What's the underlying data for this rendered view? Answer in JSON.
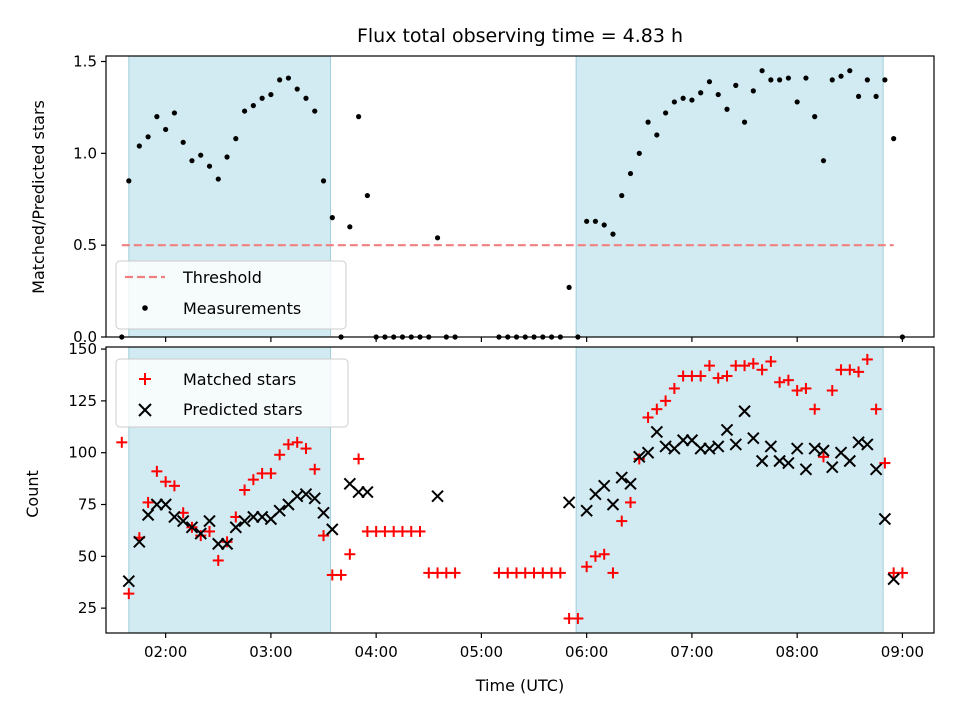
{
  "chart_data": [
    {
      "type": "scatter",
      "title": "Flux total observing time = 4.83 h",
      "xlabel": "",
      "ylabel": "Matched/Predicted stars",
      "ylim": [
        0,
        1.53
      ],
      "yticks": [
        0.0,
        0.5,
        1.0,
        1.5
      ],
      "ytick_labels": [
        "0.0",
        "0.5",
        "1.0",
        "1.5"
      ],
      "xlim": [
        "01:26",
        "09:18"
      ],
      "xticks": [
        "02:00",
        "03:00",
        "04:00",
        "05:00",
        "06:00",
        "07:00",
        "08:00",
        "09:00"
      ],
      "shaded_intervals": [
        [
          "01:39",
          "03:34"
        ],
        [
          "05:54",
          "08:49"
        ]
      ],
      "legend_position": "lower-left",
      "threshold": {
        "name": "Threshold",
        "value": 0.5,
        "x_range": [
          "01:35",
          "08:55"
        ],
        "color": "#f08080"
      },
      "series": [
        {
          "name": "Measurements",
          "marker": "dot",
          "color": "#000000",
          "points": [
            [
              "01:35",
              0.0
            ],
            [
              "01:39",
              0.85
            ],
            [
              "01:45",
              1.04
            ],
            [
              "01:50",
              1.09
            ],
            [
              "01:55",
              1.2
            ],
            [
              "02:00",
              1.13
            ],
            [
              "02:05",
              1.22
            ],
            [
              "02:10",
              1.06
            ],
            [
              "02:15",
              0.96
            ],
            [
              "02:20",
              0.99
            ],
            [
              "02:25",
              0.93
            ],
            [
              "02:30",
              0.86
            ],
            [
              "02:35",
              0.98
            ],
            [
              "02:40",
              1.08
            ],
            [
              "02:45",
              1.23
            ],
            [
              "02:50",
              1.26
            ],
            [
              "02:55",
              1.3
            ],
            [
              "03:00",
              1.32
            ],
            [
              "03:05",
              1.4
            ],
            [
              "03:10",
              1.41
            ],
            [
              "03:15",
              1.35
            ],
            [
              "03:20",
              1.3
            ],
            [
              "03:25",
              1.23
            ],
            [
              "03:30",
              0.85
            ],
            [
              "03:35",
              0.65
            ],
            [
              "03:40",
              0.0
            ],
            [
              "03:45",
              0.6
            ],
            [
              "03:50",
              1.2
            ],
            [
              "03:55",
              0.77
            ],
            [
              "04:00",
              0.0
            ],
            [
              "04:05",
              0.0
            ],
            [
              "04:10",
              0.0
            ],
            [
              "04:15",
              0.0
            ],
            [
              "04:20",
              0.0
            ],
            [
              "04:25",
              0.0
            ],
            [
              "04:30",
              0.0
            ],
            [
              "04:35",
              0.54
            ],
            [
              "04:40",
              0.0
            ],
            [
              "04:45",
              0.0
            ],
            [
              "05:10",
              0.0
            ],
            [
              "05:15",
              0.0
            ],
            [
              "05:20",
              0.0
            ],
            [
              "05:25",
              0.0
            ],
            [
              "05:30",
              0.0
            ],
            [
              "05:35",
              0.0
            ],
            [
              "05:40",
              0.0
            ],
            [
              "05:45",
              0.0
            ],
            [
              "05:50",
              0.27
            ],
            [
              "05:55",
              0.0
            ],
            [
              "06:00",
              0.63
            ],
            [
              "06:05",
              0.63
            ],
            [
              "06:10",
              0.61
            ],
            [
              "06:15",
              0.56
            ],
            [
              "06:20",
              0.77
            ],
            [
              "06:25",
              0.89
            ],
            [
              "06:30",
              1.0
            ],
            [
              "06:35",
              1.17
            ],
            [
              "06:40",
              1.1
            ],
            [
              "06:45",
              1.22
            ],
            [
              "06:50",
              1.28
            ],
            [
              "06:55",
              1.3
            ],
            [
              "07:00",
              1.29
            ],
            [
              "07:05",
              1.33
            ],
            [
              "07:10",
              1.39
            ],
            [
              "07:15",
              1.32
            ],
            [
              "07:20",
              1.24
            ],
            [
              "07:25",
              1.37
            ],
            [
              "07:30",
              1.17
            ],
            [
              "07:35",
              1.34
            ],
            [
              "07:40",
              1.45
            ],
            [
              "07:45",
              1.4
            ],
            [
              "07:50",
              1.4
            ],
            [
              "07:55",
              1.41
            ],
            [
              "08:00",
              1.28
            ],
            [
              "08:05",
              1.41
            ],
            [
              "08:10",
              1.2
            ],
            [
              "08:15",
              0.96
            ],
            [
              "08:20",
              1.4
            ],
            [
              "08:25",
              1.42
            ],
            [
              "08:30",
              1.45
            ],
            [
              "08:35",
              1.31
            ],
            [
              "08:40",
              1.4
            ],
            [
              "08:45",
              1.31
            ],
            [
              "08:50",
              1.4
            ],
            [
              "08:55",
              1.08
            ],
            [
              "09:00",
              0.0
            ]
          ]
        }
      ]
    },
    {
      "type": "scatter",
      "title": "",
      "xlabel": "Time (UTC)",
      "ylabel": "Count",
      "ylim": [
        13,
        151
      ],
      "yticks": [
        25,
        50,
        75,
        100,
        125,
        150
      ],
      "ytick_labels": [
        "25",
        "50",
        "75",
        "100",
        "125",
        "150"
      ],
      "xlim": [
        "01:26",
        "09:18"
      ],
      "xticks": [
        "02:00",
        "03:00",
        "04:00",
        "05:00",
        "06:00",
        "07:00",
        "08:00",
        "09:00"
      ],
      "xtick_labels": [
        "02:00",
        "03:00",
        "04:00",
        "05:00",
        "06:00",
        "07:00",
        "08:00",
        "09:00"
      ],
      "shaded_intervals": [
        [
          "01:39",
          "03:34"
        ],
        [
          "05:54",
          "08:49"
        ]
      ],
      "legend_position": "upper-left",
      "series": [
        {
          "name": "Matched stars",
          "marker": "plus",
          "color": "#ff0000",
          "points": [
            [
              "01:35",
              105
            ],
            [
              "01:39",
              32
            ],
            [
              "01:45",
              59
            ],
            [
              "01:50",
              76
            ],
            [
              "01:55",
              91
            ],
            [
              "02:00",
              86
            ],
            [
              "02:05",
              84
            ],
            [
              "02:10",
              71
            ],
            [
              "02:15",
              64
            ],
            [
              "02:20",
              60
            ],
            [
              "02:25",
              62
            ],
            [
              "02:30",
              48
            ],
            [
              "02:35",
              57
            ],
            [
              "02:40",
              69
            ],
            [
              "02:45",
              82
            ],
            [
              "02:50",
              87
            ],
            [
              "02:55",
              90
            ],
            [
              "03:00",
              90
            ],
            [
              "03:05",
              99
            ],
            [
              "03:10",
              104
            ],
            [
              "03:15",
              105
            ],
            [
              "03:20",
              102
            ],
            [
              "03:25",
              92
            ],
            [
              "03:30",
              60
            ],
            [
              "03:35",
              41
            ],
            [
              "03:40",
              41
            ],
            [
              "03:45",
              51
            ],
            [
              "03:50",
              97
            ],
            [
              "03:55",
              62
            ],
            [
              "04:00",
              62
            ],
            [
              "04:05",
              62
            ],
            [
              "04:10",
              62
            ],
            [
              "04:15",
              62
            ],
            [
              "04:20",
              62
            ],
            [
              "04:25",
              62
            ],
            [
              "04:30",
              42
            ],
            [
              "04:35",
              42
            ],
            [
              "04:40",
              42
            ],
            [
              "04:45",
              42
            ],
            [
              "05:10",
              42
            ],
            [
              "05:15",
              42
            ],
            [
              "05:20",
              42
            ],
            [
              "05:25",
              42
            ],
            [
              "05:30",
              42
            ],
            [
              "05:35",
              42
            ],
            [
              "05:40",
              42
            ],
            [
              "05:45",
              42
            ],
            [
              "05:50",
              20
            ],
            [
              "05:55",
              20
            ],
            [
              "06:00",
              45
            ],
            [
              "06:05",
              50
            ],
            [
              "06:10",
              51
            ],
            [
              "06:15",
              42
            ],
            [
              "06:20",
              67
            ],
            [
              "06:25",
              76
            ],
            [
              "06:30",
              97
            ],
            [
              "06:35",
              117
            ],
            [
              "06:40",
              121
            ],
            [
              "06:45",
              125
            ],
            [
              "06:50",
              131
            ],
            [
              "06:55",
              137
            ],
            [
              "07:00",
              137
            ],
            [
              "07:05",
              137
            ],
            [
              "07:10",
              142
            ],
            [
              "07:15",
              136
            ],
            [
              "07:20",
              137
            ],
            [
              "07:25",
              142
            ],
            [
              "07:30",
              142
            ],
            [
              "07:35",
              143
            ],
            [
              "07:40",
              140
            ],
            [
              "07:45",
              144
            ],
            [
              "07:50",
              134
            ],
            [
              "07:55",
              135
            ],
            [
              "08:00",
              130
            ],
            [
              "08:05",
              131
            ],
            [
              "08:10",
              121
            ],
            [
              "08:15",
              98
            ],
            [
              "08:20",
              130
            ],
            [
              "08:25",
              140
            ],
            [
              "08:30",
              140
            ],
            [
              "08:35",
              139
            ],
            [
              "08:40",
              145
            ],
            [
              "08:45",
              121
            ],
            [
              "08:50",
              95
            ],
            [
              "08:55",
              42
            ],
            [
              "09:00",
              42
            ]
          ]
        },
        {
          "name": "Predicted stars",
          "marker": "x",
          "color": "#000000",
          "points": [
            [
              "01:39",
              38
            ],
            [
              "01:45",
              57
            ],
            [
              "01:50",
              70
            ],
            [
              "01:55",
              75
            ],
            [
              "02:00",
              75
            ],
            [
              "02:05",
              69
            ],
            [
              "02:10",
              67
            ],
            [
              "02:15",
              64
            ],
            [
              "02:20",
              61
            ],
            [
              "02:25",
              67
            ],
            [
              "02:30",
              56
            ],
            [
              "02:35",
              56
            ],
            [
              "02:40",
              64
            ],
            [
              "02:45",
              67
            ],
            [
              "02:50",
              69
            ],
            [
              "02:55",
              69
            ],
            [
              "03:00",
              68
            ],
            [
              "03:05",
              72
            ],
            [
              "03:10",
              75
            ],
            [
              "03:15",
              79
            ],
            [
              "03:20",
              80
            ],
            [
              "03:25",
              78
            ],
            [
              "03:30",
              71
            ],
            [
              "03:35",
              63
            ],
            [
              "03:45",
              85
            ],
            [
              "03:50",
              81
            ],
            [
              "03:55",
              81
            ],
            [
              "04:35",
              79
            ],
            [
              "05:50",
              76
            ],
            [
              "06:00",
              72
            ],
            [
              "06:05",
              80
            ],
            [
              "06:10",
              84
            ],
            [
              "06:15",
              75
            ],
            [
              "06:20",
              88
            ],
            [
              "06:25",
              85
            ],
            [
              "06:30",
              98
            ],
            [
              "06:35",
              100
            ],
            [
              "06:40",
              110
            ],
            [
              "06:45",
              103
            ],
            [
              "06:50",
              102
            ],
            [
              "06:55",
              106
            ],
            [
              "07:00",
              106
            ],
            [
              "07:05",
              102
            ],
            [
              "07:10",
              102
            ],
            [
              "07:15",
              103
            ],
            [
              "07:20",
              111
            ],
            [
              "07:25",
              104
            ],
            [
              "07:30",
              120
            ],
            [
              "07:35",
              107
            ],
            [
              "07:40",
              96
            ],
            [
              "07:45",
              103
            ],
            [
              "07:50",
              96
            ],
            [
              "07:55",
              95
            ],
            [
              "08:00",
              102
            ],
            [
              "08:05",
              92
            ],
            [
              "08:10",
              102
            ],
            [
              "08:15",
              101
            ],
            [
              "08:20",
              93
            ],
            [
              "08:25",
              100
            ],
            [
              "08:30",
              96
            ],
            [
              "08:35",
              105
            ],
            [
              "08:40",
              104
            ],
            [
              "08:45",
              92
            ],
            [
              "08:50",
              68
            ],
            [
              "08:55",
              39
            ]
          ]
        }
      ]
    }
  ],
  "colors": {
    "shade": "#add8e6",
    "matched": "#ff0000",
    "predicted": "#000000",
    "measurements": "#000000",
    "threshold": "#f08080"
  }
}
